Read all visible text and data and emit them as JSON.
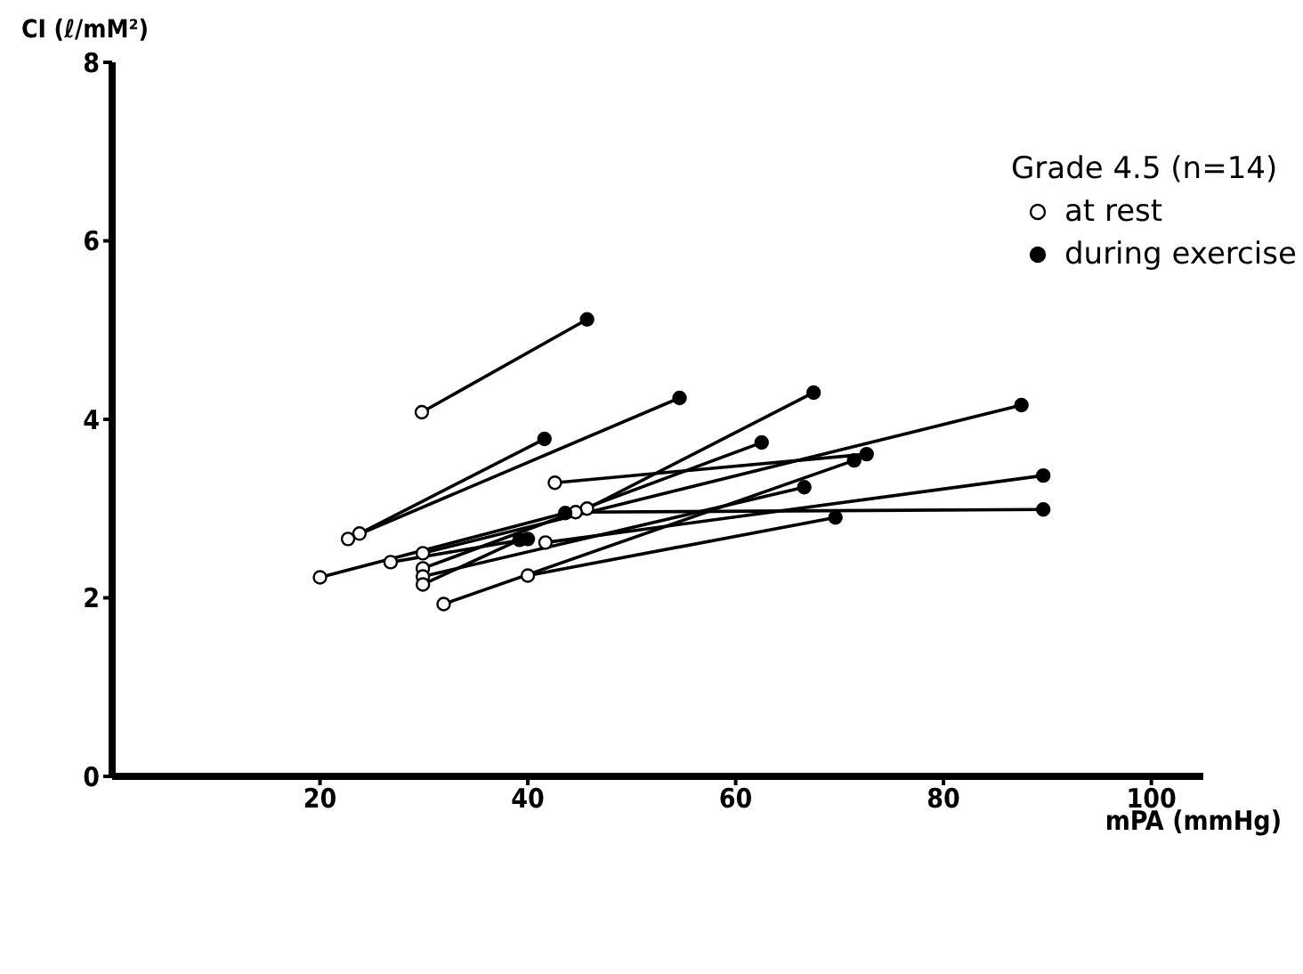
{
  "chart_data": {
    "type": "scatter",
    "xlabel": "mPA (mmHg)",
    "ylabel": "CI (ℓ/mM²)",
    "legend_title": "Grade 4.5 (n=14)",
    "legend": "top right",
    "grid": false,
    "marker": "circle",
    "line_style": "solid",
    "xlim": [
      0,
      105
    ],
    "xticks": [
      20,
      40,
      60,
      80,
      100
    ],
    "ylim": [
      0,
      8
    ],
    "yticks": [
      0,
      2,
      4,
      6,
      8
    ],
    "series": [
      {
        "type": "line",
        "marker": "none",
        "color": "#000000",
        "x": [
          29.8,
          45.7
        ],
        "values": [
          4.08,
          5.12
        ]
      },
      {
        "type": "line",
        "marker": "none",
        "color": "#000000",
        "x": [
          23.8,
          41.6
        ],
        "values": [
          2.72,
          3.78
        ]
      },
      {
        "type": "line",
        "marker": "none",
        "color": "#000000",
        "x": [
          22.7,
          54.6
        ],
        "values": [
          2.66,
          4.24
        ]
      },
      {
        "type": "line",
        "marker": "none",
        "color": "#000000",
        "x": [
          20,
          43.6
        ],
        "values": [
          2.23,
          2.95
        ]
      },
      {
        "type": "line",
        "marker": "none",
        "color": "#000000",
        "x": [
          26.8,
          40
        ],
        "values": [
          2.4,
          2.66
        ]
      },
      {
        "type": "line",
        "marker": "none",
        "color": "#000000",
        "x": [
          45.7,
          67.5
        ],
        "values": [
          3.0,
          4.3
        ]
      },
      {
        "type": "line",
        "marker": "none",
        "color": "#000000",
        "x": [
          44.6,
          89.6
        ],
        "values": [
          2.96,
          2.99
        ]
      },
      {
        "type": "line",
        "marker": "none",
        "color": "#000000",
        "x": [
          42.6,
          72.6
        ],
        "values": [
          3.29,
          3.61
        ]
      },
      {
        "type": "line",
        "marker": "none",
        "color": "#000000",
        "x": [
          29.9,
          87.5
        ],
        "values": [
          2.5,
          4.16
        ]
      },
      {
        "type": "line",
        "marker": "none",
        "color": "#000000",
        "x": [
          29.9,
          62.5
        ],
        "values": [
          2.33,
          3.74
        ]
      },
      {
        "type": "line",
        "marker": "none",
        "color": "#000000",
        "x": [
          31.9,
          71.4
        ],
        "values": [
          1.93,
          3.54
        ]
      },
      {
        "type": "line",
        "marker": "none",
        "color": "#000000",
        "x": [
          40,
          69.6
        ],
        "values": [
          2.25,
          2.9
        ]
      },
      {
        "type": "line",
        "marker": "none",
        "color": "#000000",
        "x": [
          41.7,
          89.6
        ],
        "values": [
          2.62,
          3.37
        ]
      },
      {
        "type": "line",
        "marker": "none",
        "color": "#000000",
        "x": [
          29.9,
          66.6
        ],
        "values": [
          2.24,
          3.24
        ]
      },
      {
        "type": "line",
        "marker": "none",
        "color": "#000000",
        "x": [
          29.9,
          39.2
        ],
        "values": [
          2.15,
          2.65
        ]
      },
      {
        "type": "scatter",
        "name": "at rest",
        "color": "#ffffff",
        "x": [
          29.8,
          23.8,
          22.7,
          20,
          26.8,
          45.7,
          44.6,
          42.6,
          29.9,
          29.9,
          31.9,
          40,
          41.7,
          29.9,
          29.9
        ],
        "values": [
          4.08,
          2.72,
          2.66,
          2.23,
          2.4,
          3.0,
          2.96,
          3.29,
          2.5,
          2.33,
          1.93,
          2.25,
          2.62,
          2.24,
          2.15
        ]
      },
      {
        "name": "during exercise",
        "color": "#000000",
        "x": [
          45.7,
          41.6,
          54.6,
          43.6,
          40,
          67.5,
          89.6,
          72.6,
          87.5,
          62.5,
          71.4,
          69.6,
          89.6,
          66.6,
          39.2
        ],
        "values": [
          5.12,
          3.78,
          4.24,
          2.95,
          2.66,
          4.3,
          2.99,
          3.61,
          4.16,
          3.74,
          3.54,
          2.9,
          3.37,
          3.24,
          2.65
        ]
      }
    ]
  }
}
